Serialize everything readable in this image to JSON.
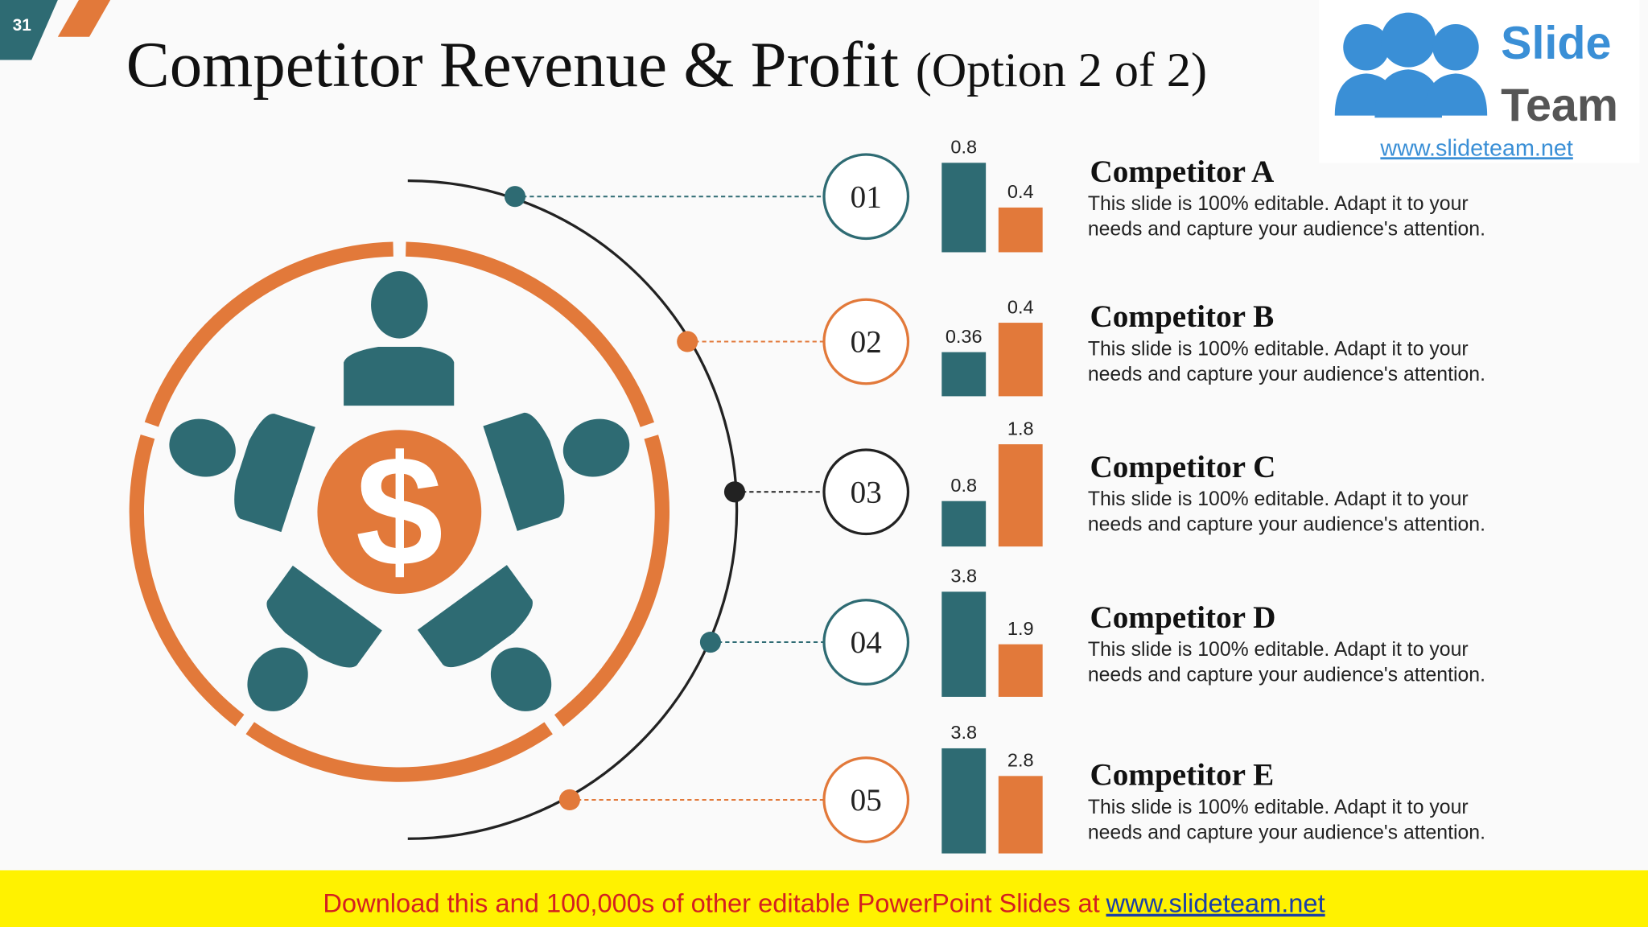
{
  "slide_number": "31",
  "title": "Competitor Revenue & Profit",
  "title_suffix": "(Option 2 of 2)",
  "logo": {
    "line1": "Slide",
    "line2": "Team",
    "url": "www.slideteam.net"
  },
  "banner": {
    "text": "Download this and 100,000s of other editable PowerPoint Slides at",
    "link": "www.slideteam.net"
  },
  "chart_data": [
    {
      "type": "bar",
      "label": "01",
      "title": "Competitor A",
      "description": [
        "This slide is 100% editable. Adapt it to your",
        "needs and capture your audience's attention."
      ],
      "values": [
        0.8,
        0.4
      ],
      "colors": [
        "#2e6b73",
        "#e2793a"
      ],
      "ylim": [
        0,
        0.94
      ]
    },
    {
      "type": "bar",
      "label": "02",
      "title": "Competitor B",
      "description": [
        "This slide is 100% editable. Adapt it to your",
        "needs and capture your audience's attention."
      ],
      "values": [
        0.36,
        0.4
      ],
      "colors": [
        "#2e6b73",
        "#e2793a"
      ],
      "ylim": [
        0.3,
        0.443
      ]
    },
    {
      "type": "bar",
      "label": "03",
      "title": "Competitor C",
      "description": [
        "This slide is 100% editable. Adapt it to your",
        "needs and capture your audience's attention."
      ],
      "values": [
        0.8,
        1.8
      ],
      "colors": [
        "#2e6b73",
        "#e2793a"
      ],
      "ylim": [
        0,
        1.85
      ]
    },
    {
      "type": "bar",
      "label": "04",
      "title": "Competitor D",
      "description": [
        "This slide is 100% editable. Adapt it to your",
        "needs and capture your audience's attention."
      ],
      "values": [
        3.8,
        1.9
      ],
      "colors": [
        "#2e6b73",
        "#e2793a"
      ],
      "ylim": [
        0,
        3.8
      ]
    },
    {
      "type": "bar",
      "label": "05",
      "title": "Competitor E",
      "description": [
        "This slide is 100% editable. Adapt it to your",
        "needs and capture your audience's attention."
      ],
      "values": [
        3.8,
        2.8
      ],
      "colors": [
        "#2e6b73",
        "#e2793a"
      ],
      "ylim": [
        0,
        3.8
      ]
    }
  ]
}
